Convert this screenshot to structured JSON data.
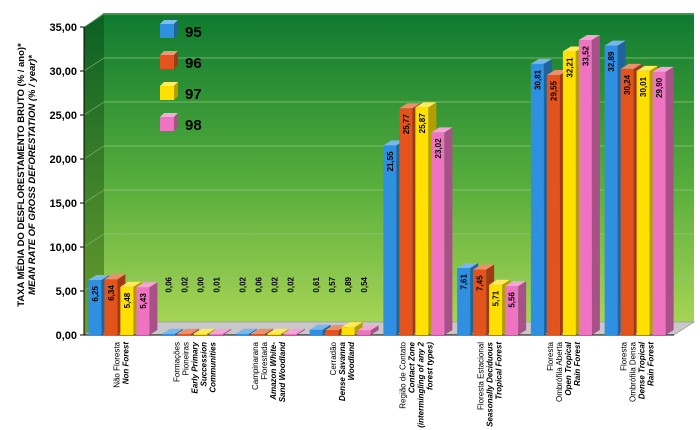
{
  "chart_data": {
    "type": "bar",
    "ylabel": "TAXA MÉDIA DO DESFLORESTAMENTO BRUTO (% / ano)*",
    "ylabel_en": "MEAN RATE OF GROSS DEFORESTATION (% / year)*",
    "ylim": [
      0,
      35
    ],
    "yticks": [
      "0,00",
      "5,00",
      "10,00",
      "15,00",
      "20,00",
      "25,00",
      "30,00",
      "35,00"
    ],
    "legend_position": "top-left",
    "categories": [
      {
        "lines": [
          "Não Floresta"
        ],
        "lines_en": [
          "Non Forest"
        ]
      },
      {
        "lines": [
          "Formações",
          "Pioneiras"
        ],
        "lines_en": [
          "Early Primary",
          "Succession",
          "Communities"
        ]
      },
      {
        "lines": [
          "Campinarana",
          "Florestada"
        ],
        "lines_en": [
          "Amazon White-",
          "Sand Woodland"
        ]
      },
      {
        "lines": [
          "Cerradão"
        ],
        "lines_en": [
          "Dense Savanna",
          "Woodland"
        ]
      },
      {
        "lines": [
          "Região de Contato"
        ],
        "lines_en": [
          "Contact Zone",
          "(intermingling of any 2",
          "forest types)"
        ]
      },
      {
        "lines": [
          "Floresta Estacional"
        ],
        "lines_en": [
          "Seasonally Deciduous",
          "Tropical Forest"
        ]
      },
      {
        "lines": [
          "Floresta",
          "Ombrófila Aberta"
        ],
        "lines_en": [
          "Open Tropical",
          "Rain Forest"
        ]
      },
      {
        "lines": [
          "Floresta",
          "Ombrófila Densa"
        ],
        "lines_en": [
          "Dense Tropical",
          "Rain Forest"
        ]
      }
    ],
    "series": [
      {
        "name": "95",
        "color": "#2f8fe0",
        "values": [
          6.25,
          0.06,
          0.02,
          0.61,
          21.55,
          7.61,
          30.81,
          32.89
        ],
        "labels": [
          "6,25",
          "0,06",
          "0,02",
          "0,61",
          "21,55",
          "7,61",
          "30,81",
          "32,89"
        ]
      },
      {
        "name": "96",
        "color": "#e2541c",
        "values": [
          6.34,
          0.02,
          0.06,
          0.57,
          25.77,
          7.45,
          29.55,
          30.24
        ],
        "labels": [
          "6,34",
          "0,02",
          "0,06",
          "0,57",
          "25,77",
          "7,45",
          "29,55",
          "30,24"
        ]
      },
      {
        "name": "97",
        "color": "#ffe000",
        "values": [
          5.48,
          0.0,
          0.02,
          0.89,
          25.87,
          5.71,
          32.21,
          30.01
        ],
        "labels": [
          "5,48",
          "0,00",
          "0,02",
          "0,89",
          "25,87",
          "5,71",
          "32,21",
          "30,01"
        ]
      },
      {
        "name": "98",
        "color": "#ee74c2",
        "values": [
          5.43,
          0.01,
          0.02,
          0.54,
          23.02,
          5.56,
          33.52,
          29.9
        ],
        "labels": [
          "5,43",
          "0,01",
          "0,02",
          "0,54",
          "23,02",
          "5,56",
          "33,52",
          "29,90"
        ]
      }
    ]
  }
}
